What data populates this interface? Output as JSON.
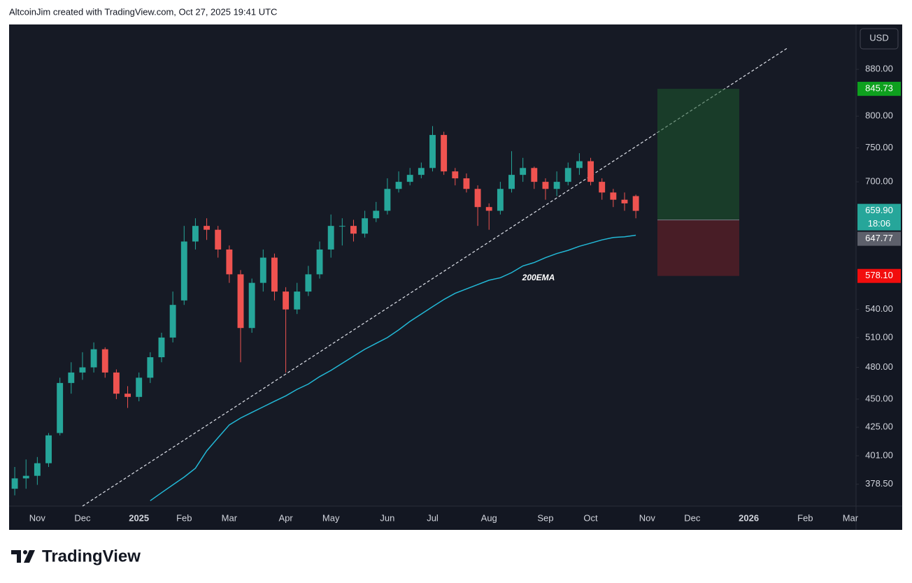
{
  "header": {
    "text": "AltcoinJim created with TradingView.com, Oct 27, 2025 19:41 UTC"
  },
  "footer": {
    "brand": "TradingView"
  },
  "chart_data": {
    "type": "candlestick",
    "currency": "USD",
    "log_scale": true,
    "grid": false,
    "up_color": "#26a69a",
    "down_color": "#ef5350",
    "categories": [
      null,
      null,
      "Nov",
      null,
      null,
      null,
      "Dec",
      null,
      null,
      null,
      null,
      "2025",
      null,
      null,
      null,
      "Feb",
      null,
      null,
      null,
      "Mar",
      null,
      null,
      null,
      null,
      "Apr",
      null,
      null,
      null,
      "May",
      null,
      null,
      null,
      null,
      "Jun",
      null,
      null,
      null,
      "Jul",
      null,
      null,
      null,
      null,
      "Aug",
      null,
      null,
      null,
      null,
      "Sep",
      null,
      null,
      null,
      "Oct",
      null,
      null,
      null,
      null,
      "Nov",
      null,
      null,
      null,
      "Dec",
      null,
      null,
      null,
      null,
      "2026",
      null,
      null,
      null,
      null,
      "Feb",
      null,
      null,
      null,
      "Mar"
    ],
    "open": [
      375,
      383,
      385,
      395,
      420,
      465,
      475,
      480,
      498,
      475,
      455,
      452,
      470,
      490,
      510,
      550,
      620,
      640,
      635,
      610,
      580,
      520,
      570,
      600,
      560,
      540,
      560,
      580,
      610,
      640,
      640,
      630,
      650,
      660,
      690,
      700,
      710,
      720,
      770,
      715,
      705,
      690,
      665,
      660,
      690,
      710,
      720,
      700,
      690,
      700,
      720,
      730,
      700,
      685,
      675,
      680,
      null,
      null,
      null,
      null,
      null,
      null,
      null,
      null,
      null,
      null,
      null,
      null,
      null,
      null,
      null,
      null,
      null,
      null,
      null
    ],
    "high": [
      392,
      398,
      400,
      420,
      470,
      485,
      495,
      505,
      500,
      478,
      462,
      475,
      495,
      515,
      560,
      640,
      650,
      650,
      640,
      615,
      585,
      575,
      610,
      605,
      565,
      570,
      590,
      620,
      655,
      650,
      648,
      660,
      672,
      705,
      715,
      720,
      728,
      784,
      775,
      720,
      712,
      695,
      670,
      700,
      745,
      735,
      722,
      705,
      715,
      728,
      742,
      735,
      705,
      690,
      685,
      682,
      null,
      null,
      null,
      null,
      null,
      null,
      null,
      null,
      null,
      null,
      null,
      null,
      null,
      null,
      null,
      null,
      null,
      null,
      null
    ],
    "low": [
      370,
      375,
      378,
      392,
      418,
      455,
      468,
      475,
      470,
      450,
      442,
      448,
      465,
      485,
      505,
      545,
      610,
      622,
      600,
      570,
      485,
      515,
      560,
      550,
      475,
      535,
      555,
      575,
      600,
      615,
      620,
      625,
      645,
      655,
      685,
      695,
      705,
      715,
      710,
      695,
      685,
      640,
      635,
      655,
      685,
      700,
      690,
      675,
      680,
      695,
      710,
      695,
      675,
      665,
      660,
      650,
      null,
      null,
      null,
      null,
      null,
      null,
      null,
      null,
      null,
      null,
      null,
      null,
      null,
      null,
      null,
      null,
      null,
      null,
      null
    ],
    "close": [
      383,
      385,
      395,
      418,
      465,
      475,
      480,
      498,
      475,
      455,
      452,
      470,
      490,
      510,
      545,
      620,
      640,
      635,
      610,
      580,
      520,
      570,
      600,
      560,
      540,
      560,
      580,
      610,
      640,
      640,
      630,
      650,
      660,
      690,
      700,
      710,
      720,
      770,
      715,
      705,
      690,
      665,
      660,
      690,
      710,
      720,
      700,
      690,
      700,
      720,
      730,
      700,
      685,
      675,
      670,
      659.9,
      null,
      null,
      null,
      null,
      null,
      null,
      null,
      null,
      null,
      null,
      null,
      null,
      null,
      null,
      null,
      null,
      null,
      null,
      null
    ],
    "ema": {
      "name": "200EMA",
      "color": "#22b8d6",
      "values": [
        null,
        null,
        null,
        null,
        null,
        null,
        null,
        null,
        null,
        null,
        null,
        null,
        366,
        372,
        378,
        384,
        391,
        405,
        416,
        427,
        433,
        438,
        443,
        448,
        453,
        459,
        464,
        471,
        477,
        484,
        491,
        498,
        504,
        510,
        518,
        527,
        535,
        543,
        551,
        558,
        563,
        568,
        573,
        576,
        582,
        590,
        594,
        600,
        605,
        609,
        614,
        618,
        622,
        625,
        626,
        628,
        null,
        null,
        null,
        null,
        null,
        null,
        null,
        null,
        null,
        null,
        null,
        null,
        null,
        null,
        null,
        null,
        null,
        null,
        null
      ]
    },
    "position": {
      "target": {
        "value": 845.73,
        "label": "845.73"
      },
      "entry": {
        "value": 647.77,
        "label": "647.77"
      },
      "stop": {
        "value": 578.1,
        "label": "578.10"
      }
    },
    "last": {
      "value": 659.9,
      "label": "659.90",
      "countdown": "18:06"
    },
    "ylim": [
      362,
      964
    ],
    "yticks": [
      {
        "value": 378.5,
        "label": "378.50"
      },
      {
        "value": 401,
        "label": "401.00"
      },
      {
        "value": 425,
        "label": "425.00"
      },
      {
        "value": 450,
        "label": "450.00"
      },
      {
        "value": 480,
        "label": "480.00"
      },
      {
        "value": 510,
        "label": "510.00"
      },
      {
        "value": 540,
        "label": "540.00"
      },
      {
        "value": 700,
        "label": "700.00"
      },
      {
        "value": 750,
        "label": "750.00"
      },
      {
        "value": 800,
        "label": "800.00"
      },
      {
        "value": 880,
        "label": "880.00"
      }
    ]
  }
}
